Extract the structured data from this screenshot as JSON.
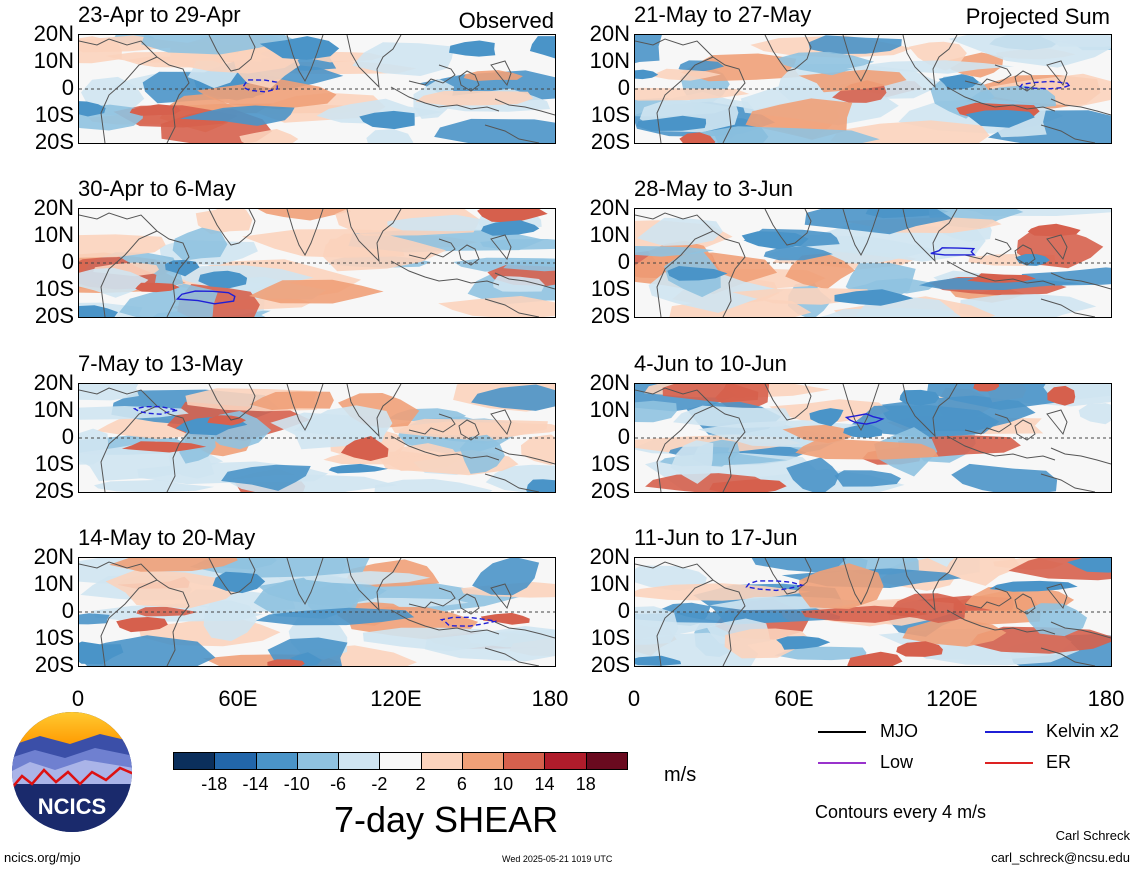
{
  "headers": {
    "observed": "Observed",
    "projected": "Projected Sum"
  },
  "panels_left": [
    {
      "title": "23-Apr to 29-Apr"
    },
    {
      "title": "30-Apr to 6-May"
    },
    {
      "title": "7-May to 13-May"
    },
    {
      "title": "14-May to 20-May"
    }
  ],
  "panels_right": [
    {
      "title": "21-May to 27-May"
    },
    {
      "title": "28-May to 3-Jun"
    },
    {
      "title": "4-Jun to 10-Jun"
    },
    {
      "title": "11-Jun to 17-Jun"
    }
  ],
  "lat_labels": [
    "20N",
    "10N",
    "0",
    "10S",
    "20S"
  ],
  "lon_labels": [
    "0",
    "60E",
    "120E",
    "180"
  ],
  "colorbar": {
    "ticks": [
      "-18",
      "-14",
      "-10",
      "-6",
      "-2",
      "2",
      "6",
      "10",
      "14",
      "18"
    ],
    "colors": [
      "#0b2f5c",
      "#2266aa",
      "#4a94c8",
      "#8fc2e0",
      "#cfe4f1",
      "#f7f7f7",
      "#fbd3bd",
      "#f0a078",
      "#d6604d",
      "#b01c2b",
      "#6a0a1f"
    ],
    "units": "m/s",
    "title": "7-day SHEAR"
  },
  "legend": {
    "items": [
      {
        "label": "MJO",
        "color": "#000000"
      },
      {
        "label": "Kelvin x2",
        "color": "#1f1fd6"
      },
      {
        "label": "Low",
        "color": "#9933cc"
      },
      {
        "label": "ER",
        "color": "#dd2222"
      }
    ],
    "contours_note": "Contours every 4 m/s"
  },
  "logo": {
    "text": "NCICS"
  },
  "footer": {
    "url": "ncics.org/mjo",
    "timestamp": "Wed 2025-05-21 1019 UTC",
    "author": "Carl Schreck",
    "email": "carl_schreck@ncsu.edu"
  }
}
